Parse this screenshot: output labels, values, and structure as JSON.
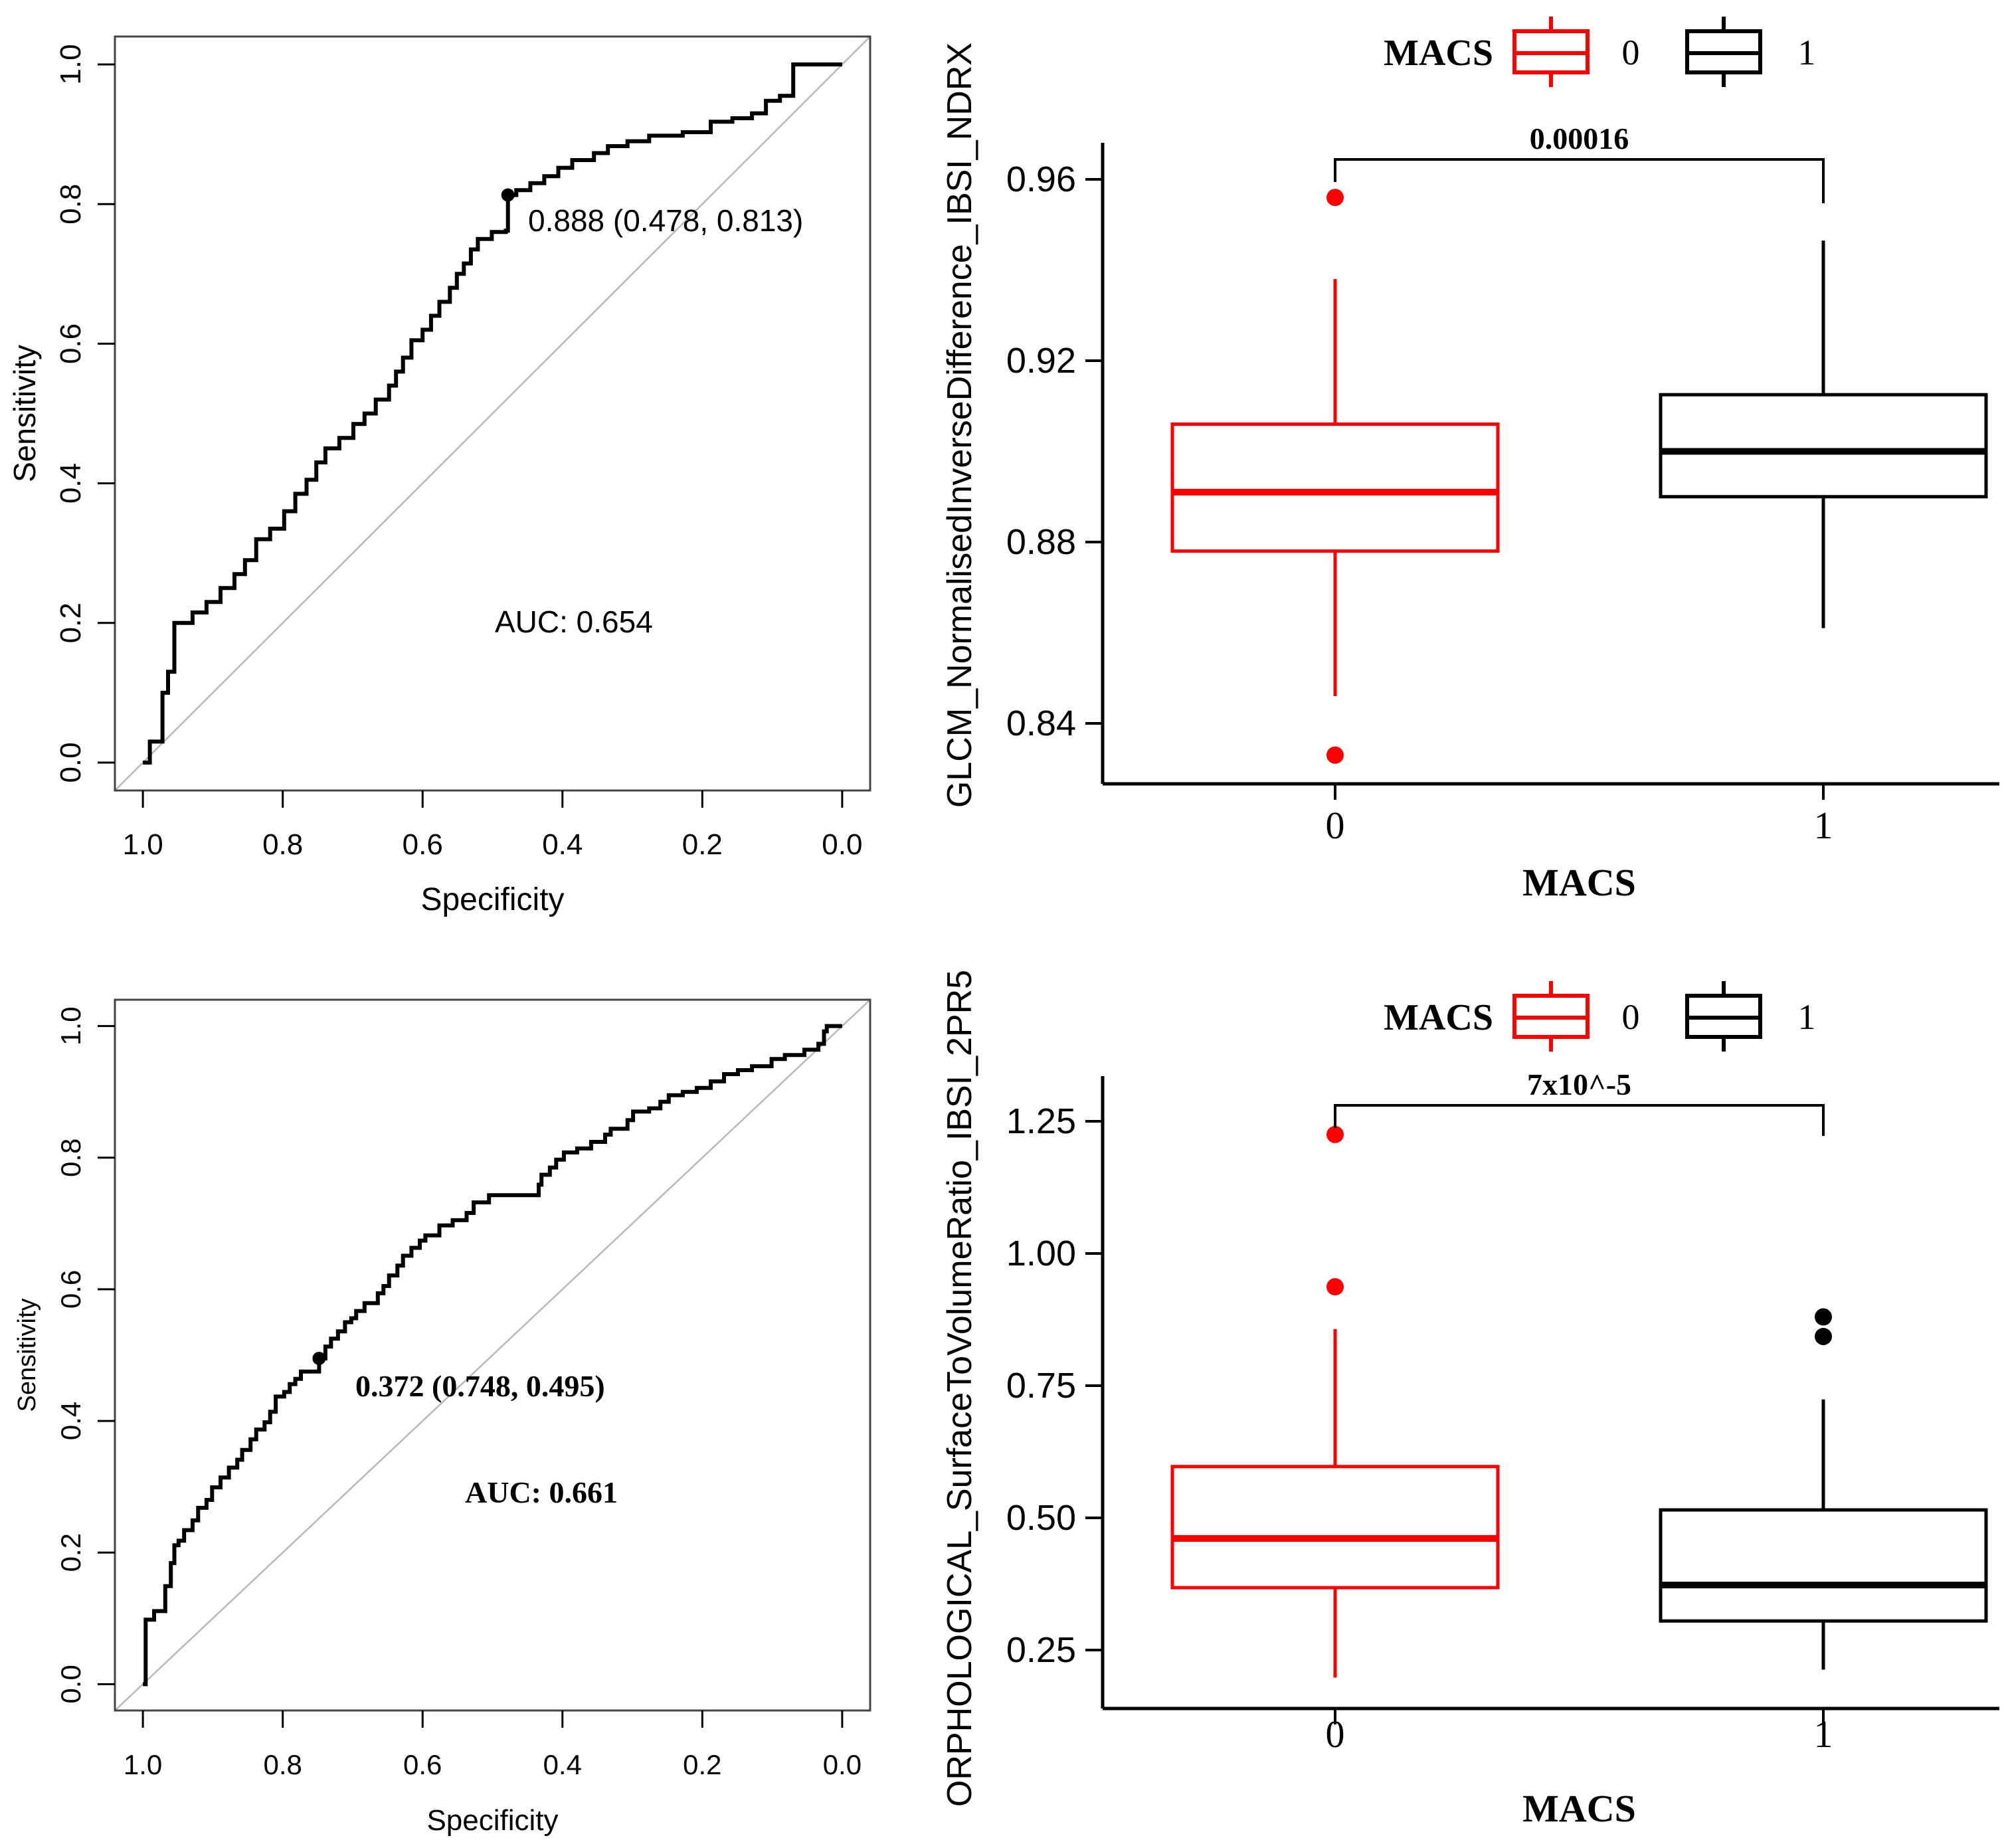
{
  "colors": {
    "series_macs0": "#FF0000",
    "series_macs1": "#000000",
    "roc_curve": "#000000",
    "chance_diagonal": "#B8B8B8",
    "plot_border": "#444444",
    "text": "#000000"
  },
  "chart_data": [
    {
      "id": "roc_glcm",
      "type": "line",
      "title": "",
      "xlabel": "Specificity",
      "ylabel": "Sensitivity",
      "x_axis_reversed": true,
      "x_ticks": [
        "1.0",
        "0.8",
        "0.6",
        "0.4",
        "0.2",
        "0.0"
      ],
      "y_ticks": [
        "0.0",
        "0.2",
        "0.4",
        "0.6",
        "0.8",
        "1.0"
      ],
      "xlim": [
        1.04,
        -0.04
      ],
      "ylim": [
        -0.04,
        1.04
      ],
      "grid": false,
      "auc_label": "AUC: 0.654",
      "cutoff_label": "0.888 (0.478, 0.813)",
      "cutoff_point": {
        "specificity": 0.478,
        "sensitivity": 0.813
      },
      "diagonal": true,
      "curve": [
        [
          1.0,
          0
        ],
        [
          0.99,
          0
        ],
        [
          0.99,
          0.03
        ],
        [
          0.972,
          0.1
        ],
        [
          0.964,
          0.13
        ],
        [
          0.955,
          0.2
        ],
        [
          0.929,
          0.215
        ],
        [
          0.909,
          0.23
        ],
        [
          0.889,
          0.25
        ],
        [
          0.869,
          0.27
        ],
        [
          0.854,
          0.29
        ],
        [
          0.838,
          0.32
        ],
        [
          0.818,
          0.335
        ],
        [
          0.798,
          0.36
        ],
        [
          0.782,
          0.385
        ],
        [
          0.766,
          0.405
        ],
        [
          0.752,
          0.43
        ],
        [
          0.739,
          0.45
        ],
        [
          0.719,
          0.465
        ],
        [
          0.699,
          0.485
        ],
        [
          0.683,
          0.5
        ],
        [
          0.667,
          0.52
        ],
        [
          0.648,
          0.54
        ],
        [
          0.638,
          0.56
        ],
        [
          0.628,
          0.58
        ],
        [
          0.616,
          0.605
        ],
        [
          0.6,
          0.62
        ],
        [
          0.588,
          0.64
        ],
        [
          0.576,
          0.66
        ],
        [
          0.561,
          0.68
        ],
        [
          0.551,
          0.7
        ],
        [
          0.541,
          0.715
        ],
        [
          0.531,
          0.735
        ],
        [
          0.521,
          0.75
        ],
        [
          0.501,
          0.76
        ],
        [
          0.481,
          0.762
        ],
        [
          0.478,
          0.813
        ],
        [
          0.466,
          0.82
        ],
        [
          0.446,
          0.83
        ],
        [
          0.426,
          0.84
        ],
        [
          0.406,
          0.852
        ],
        [
          0.386,
          0.863
        ],
        [
          0.355,
          0.873
        ],
        [
          0.335,
          0.883
        ],
        [
          0.307,
          0.89
        ],
        [
          0.276,
          0.898
        ],
        [
          0.228,
          0.903
        ],
        [
          0.188,
          0.918
        ],
        [
          0.157,
          0.923
        ],
        [
          0.129,
          0.93
        ],
        [
          0.109,
          0.948
        ],
        [
          0.089,
          0.955
        ],
        [
          0.07,
          1.0
        ],
        [
          0.0,
          1.0
        ]
      ]
    },
    {
      "id": "box_glcm",
      "type": "box",
      "xlabel": "MACS",
      "ylabel": "GLCM_NormalisedInverseDifference_IBSI_NDRX",
      "legend": {
        "title": "MACS",
        "entries": [
          {
            "label": "0",
            "color": "#FF0000"
          },
          {
            "label": "1",
            "color": "#000000"
          }
        ],
        "position": "top"
      },
      "p_value": "0.00016",
      "categories": [
        "0",
        "1"
      ],
      "y_ticks": [
        0.84,
        0.88,
        0.92,
        0.96
      ],
      "y_tick_labels": [
        "0.84",
        "0.88",
        "0.92",
        "0.96"
      ],
      "ylim": [
        0.827,
        0.968
      ],
      "grid": false,
      "series": [
        {
          "label": "0",
          "color": "#FF0000",
          "whisker_low": 0.846,
          "q1": 0.878,
          "median": 0.891,
          "q3": 0.906,
          "whisker_high": 0.938,
          "outliers": [
            0.956,
            0.833
          ]
        },
        {
          "label": "1",
          "color": "#000000",
          "whisker_low": 0.861,
          "q1": 0.89,
          "median": 0.9,
          "q3": 0.9125,
          "whisker_high": 0.9465,
          "outliers": []
        }
      ]
    },
    {
      "id": "roc_morphological",
      "type": "line",
      "title": "",
      "xlabel": "Specificity",
      "ylabel": "Sensitivity",
      "x_axis_reversed": true,
      "x_ticks": [
        "1.0",
        "0.8",
        "0.6",
        "0.4",
        "0.2",
        "0.0"
      ],
      "y_ticks": [
        "0.0",
        "0.2",
        "0.4",
        "0.6",
        "0.8",
        "1.0"
      ],
      "xlim": [
        1.04,
        -0.04
      ],
      "ylim": [
        -0.04,
        1.04
      ],
      "grid": false,
      "auc_label": "AUC: 0.661",
      "cutoff_label": "0.372 (0.748, 0.495)",
      "cutoff_point": {
        "specificity": 0.748,
        "sensitivity": 0.495
      },
      "diagonal": true,
      "curve": [
        [
          1.0,
          0
        ],
        [
          0.996,
          0.098
        ],
        [
          0.984,
          0.111
        ],
        [
          0.968,
          0.149
        ],
        [
          0.96,
          0.184
        ],
        [
          0.955,
          0.211
        ],
        [
          0.949,
          0.218
        ],
        [
          0.941,
          0.234
        ],
        [
          0.929,
          0.249
        ],
        [
          0.921,
          0.268
        ],
        [
          0.909,
          0.28
        ],
        [
          0.901,
          0.299
        ],
        [
          0.889,
          0.314
        ],
        [
          0.877,
          0.329
        ],
        [
          0.865,
          0.341
        ],
        [
          0.858,
          0.356
        ],
        [
          0.846,
          0.372
        ],
        [
          0.838,
          0.387
        ],
        [
          0.826,
          0.398
        ],
        [
          0.818,
          0.414
        ],
        [
          0.81,
          0.437
        ],
        [
          0.798,
          0.444
        ],
        [
          0.79,
          0.456
        ],
        [
          0.782,
          0.464
        ],
        [
          0.774,
          0.475
        ],
        [
          0.748,
          0.495
        ],
        [
          0.739,
          0.513
        ],
        [
          0.731,
          0.525
        ],
        [
          0.721,
          0.536
        ],
        [
          0.711,
          0.55
        ],
        [
          0.702,
          0.556
        ],
        [
          0.695,
          0.567
        ],
        [
          0.683,
          0.579
        ],
        [
          0.664,
          0.594
        ],
        [
          0.656,
          0.605
        ],
        [
          0.648,
          0.621
        ],
        [
          0.636,
          0.636
        ],
        [
          0.628,
          0.651
        ],
        [
          0.616,
          0.663
        ],
        [
          0.604,
          0.674
        ],
        [
          0.596,
          0.682
        ],
        [
          0.576,
          0.697
        ],
        [
          0.557,
          0.705
        ],
        [
          0.537,
          0.716
        ],
        [
          0.527,
          0.732
        ],
        [
          0.505,
          0.743
        ],
        [
          0.434,
          0.759
        ],
        [
          0.43,
          0.774
        ],
        [
          0.418,
          0.785
        ],
        [
          0.409,
          0.797
        ],
        [
          0.398,
          0.808
        ],
        [
          0.379,
          0.814
        ],
        [
          0.359,
          0.824
        ],
        [
          0.339,
          0.835
        ],
        [
          0.331,
          0.844
        ],
        [
          0.307,
          0.857
        ],
        [
          0.299,
          0.87
        ],
        [
          0.276,
          0.875
        ],
        [
          0.26,
          0.885
        ],
        [
          0.248,
          0.895
        ],
        [
          0.228,
          0.9
        ],
        [
          0.208,
          0.906
        ],
        [
          0.188,
          0.916
        ],
        [
          0.169,
          0.927
        ],
        [
          0.149,
          0.933
        ],
        [
          0.129,
          0.939
        ],
        [
          0.101,
          0.95
        ],
        [
          0.082,
          0.956
        ],
        [
          0.054,
          0.964
        ],
        [
          0.034,
          0.973
        ],
        [
          0.026,
          0.992
        ],
        [
          0.022,
          1.0
        ],
        [
          0.0,
          1.0
        ]
      ]
    },
    {
      "id": "box_morphological",
      "type": "box",
      "xlabel": "MACS",
      "ylabel": "ORPHOLOGICAL_SurfaceToVolumeRatio_IBSI_2PR5",
      "legend": {
        "title": "MACS",
        "entries": [
          {
            "label": "0",
            "color": "#FF0000"
          },
          {
            "label": "1",
            "color": "#000000"
          }
        ],
        "position": "top"
      },
      "p_value": "7x10^-5",
      "categories": [
        "0",
        "1"
      ],
      "y_ticks": [
        0.25,
        0.5,
        0.75,
        1.0,
        1.25
      ],
      "y_tick_labels": [
        "0.25",
        "0.50",
        "0.75",
        "1.00",
        "1.25"
      ],
      "ylim": [
        0.139,
        1.335
      ],
      "grid": false,
      "series": [
        {
          "label": "0",
          "color": "#FF0000",
          "whisker_low": 0.198,
          "q1": 0.368,
          "median": 0.461,
          "q3": 0.597,
          "whisker_high": 0.857,
          "outliers": [
            1.225,
            0.937
          ]
        },
        {
          "label": "1",
          "color": "#000000",
          "whisker_low": 0.213,
          "q1": 0.305,
          "median": 0.373,
          "q3": 0.515,
          "whisker_high": 0.724,
          "outliers": [
            0.88,
            0.843
          ]
        }
      ]
    }
  ]
}
